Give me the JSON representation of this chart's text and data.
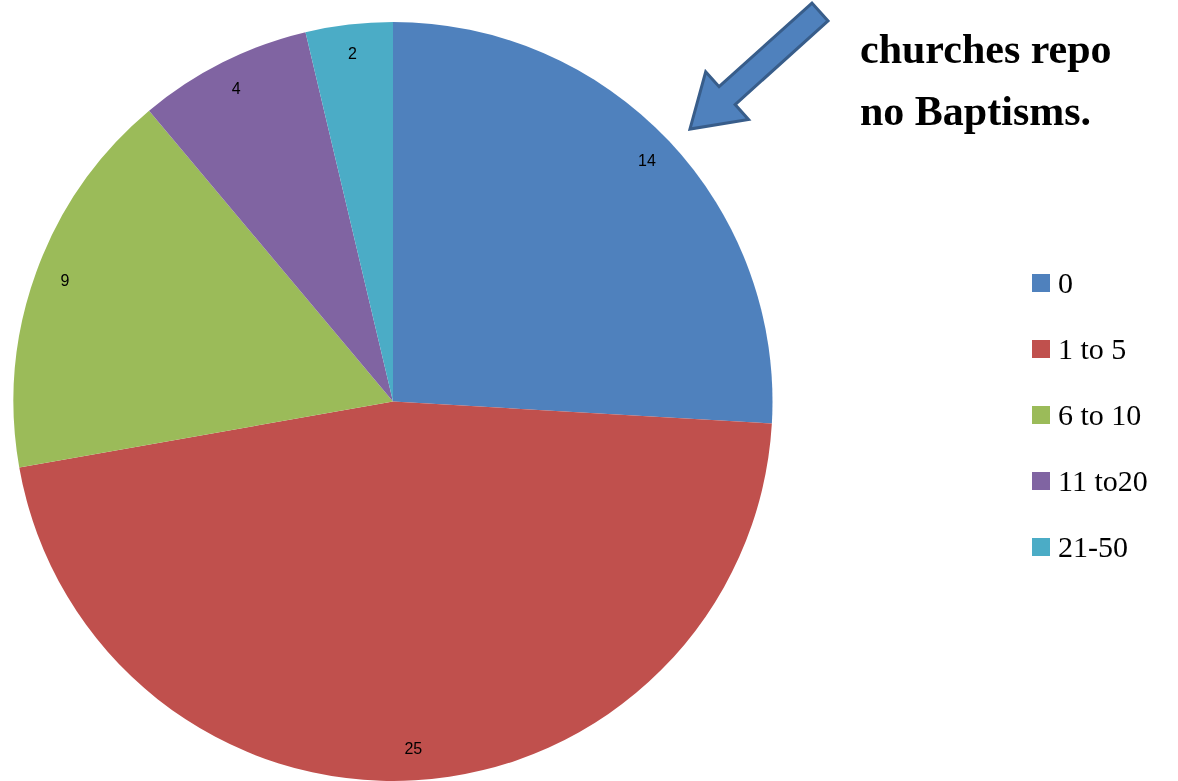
{
  "chart_data": {
    "type": "pie",
    "categories": [
      "0",
      "1 to 5",
      "6 to 10",
      "11 to20",
      "21-50"
    ],
    "values": [
      14,
      25,
      9,
      4,
      2
    ],
    "colors": [
      "#4f81bd",
      "#c0504d",
      "#9bbb59",
      "#8064a2",
      "#4bacc6"
    ],
    "data_labels": true,
    "legend": "right",
    "annotations": [
      "churches repo\nno Baptisms."
    ]
  }
}
